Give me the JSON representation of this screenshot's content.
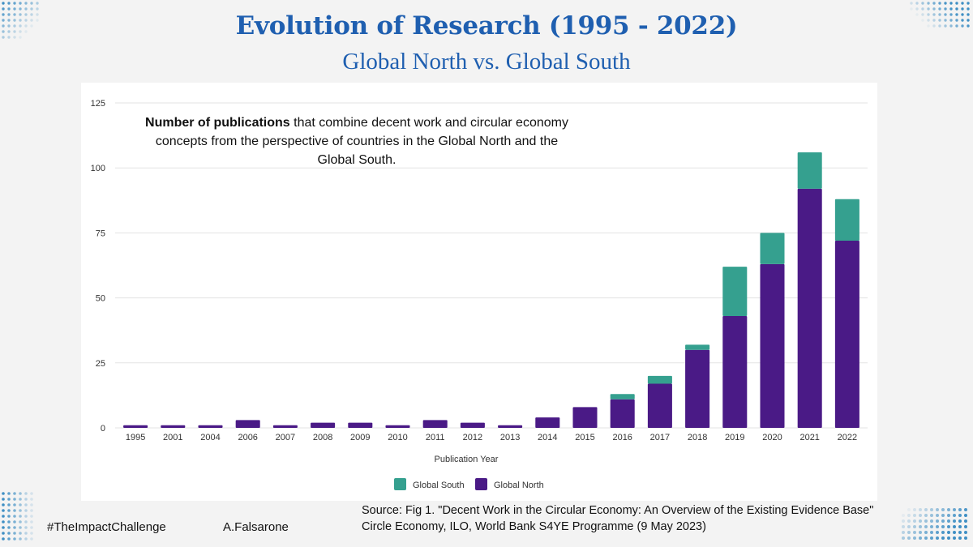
{
  "page": {
    "title": "Evolution of Research (1995 - 2022)",
    "subtitle": "Global North vs. Global South",
    "description_bold": "Number of publications",
    "description_rest": " that combine decent work and circular economy concepts  from the perspective of countries in the Global North and the Global South.",
    "hashtag": "#TheImpactChallenge",
    "author": "A.Falsarone",
    "source": "Source:   Fig 1. \"Decent Work in the Circular Economy: An Overview of the Existing Evidence Base\" Circle Economy, ILO, World Bank S4YE Programme (9 May 2023)"
  },
  "colors": {
    "title": "#1f5fb0",
    "global_north": "#4a1a86",
    "global_south": "#35a08f",
    "dots": "#3f8fc4"
  },
  "chart_data": {
    "type": "bar",
    "stacked": true,
    "categories": [
      "1995",
      "2001",
      "2004",
      "2006",
      "2007",
      "2008",
      "2009",
      "2010",
      "2011",
      "2012",
      "2013",
      "2014",
      "2015",
      "2016",
      "2017",
      "2018",
      "2019",
      "2020",
      "2021",
      "2022"
    ],
    "series": [
      {
        "name": "Global North",
        "color": "#4a1a86",
        "values": [
          1,
          1,
          1,
          3,
          1,
          2,
          2,
          1,
          3,
          2,
          1,
          4,
          8,
          11,
          17,
          30,
          43,
          63,
          92,
          72
        ]
      },
      {
        "name": "Global South",
        "color": "#35a08f",
        "values": [
          0,
          0,
          0,
          0,
          0,
          0,
          0,
          0,
          0,
          0,
          0,
          0,
          0,
          2,
          3,
          2,
          19,
          12,
          14,
          16
        ]
      }
    ],
    "xlabel": "Publication Year",
    "ylabel": "",
    "ylim": [
      0,
      125
    ],
    "yticks": [
      0,
      25,
      50,
      75,
      100,
      125
    ],
    "grid": true,
    "legend": {
      "placement": "bottom",
      "entries": [
        "Global South",
        "Global North"
      ]
    }
  }
}
